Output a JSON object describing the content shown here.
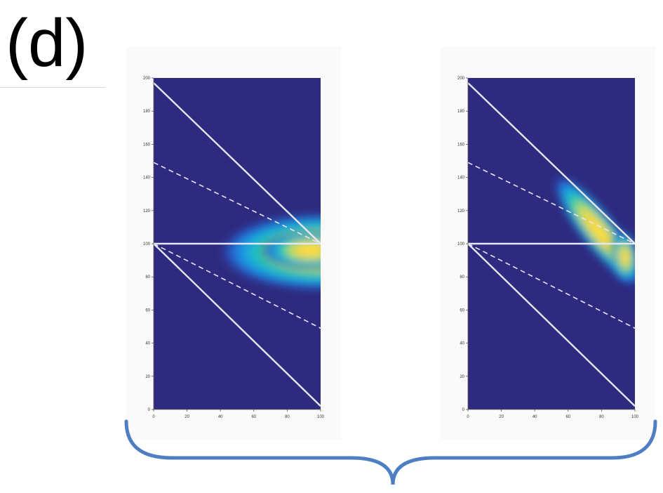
{
  "panel_label": "(d)",
  "colors": {
    "background_field": "#2e2a7f",
    "guide_lines": "#e6e6f0",
    "brace": "#4f7ec2",
    "colormap": [
      "#2e2a7f",
      "#2466d6",
      "#1aa9e0",
      "#27c9a8",
      "#c8e05a",
      "#ffd23a",
      "#ffe94d"
    ]
  },
  "chart_data": [
    {
      "type": "heatmap",
      "xlim": [
        0,
        100
      ],
      "ylim": [
        0,
        200
      ],
      "x_ticks": [
        "0",
        "20",
        "40",
        "60",
        "80",
        "100"
      ],
      "y_ticks": [
        "0",
        "20",
        "40",
        "60",
        "80",
        "100",
        "120",
        "140",
        "160",
        "180",
        "200"
      ],
      "guide_lines": [
        {
          "style": "solid",
          "x": [
            0,
            100
          ],
          "y": [
            197,
            100
          ]
        },
        {
          "style": "solid",
          "x": [
            0,
            100
          ],
          "y": [
            100,
            100
          ]
        },
        {
          "style": "solid",
          "x": [
            0,
            100
          ],
          "y": [
            100,
            2
          ]
        },
        {
          "style": "dashed",
          "x": [
            0,
            100
          ],
          "y": [
            149,
            100
          ]
        },
        {
          "style": "dashed",
          "x": [
            0,
            100
          ],
          "y": [
            100,
            49
          ]
        }
      ],
      "intensity_peak": {
        "x": 100,
        "y": 100
      },
      "intensity_shape": "horizontal plume centered at y≈100, widening toward x=100"
    },
    {
      "type": "heatmap",
      "xlim": [
        0,
        100
      ],
      "ylim": [
        0,
        200
      ],
      "x_ticks": [
        "0",
        "20",
        "40",
        "60",
        "80",
        "100"
      ],
      "y_ticks": [
        "0",
        "20",
        "40",
        "60",
        "80",
        "100",
        "120",
        "140",
        "160",
        "180",
        "200"
      ],
      "guide_lines": [
        {
          "style": "solid",
          "x": [
            0,
            100
          ],
          "y": [
            197,
            100
          ]
        },
        {
          "style": "solid",
          "x": [
            0,
            100
          ],
          "y": [
            100,
            100
          ]
        },
        {
          "style": "solid",
          "x": [
            0,
            100
          ],
          "y": [
            100,
            2
          ]
        },
        {
          "style": "dashed",
          "x": [
            0,
            100
          ],
          "y": [
            149,
            100
          ]
        },
        {
          "style": "dashed",
          "x": [
            0,
            100
          ],
          "y": [
            100,
            49
          ]
        }
      ],
      "intensity_peak": {
        "x": 100,
        "y": 100
      },
      "intensity_shape": "diagonal band along upper solid line, from x≈40 to x=100"
    }
  ]
}
